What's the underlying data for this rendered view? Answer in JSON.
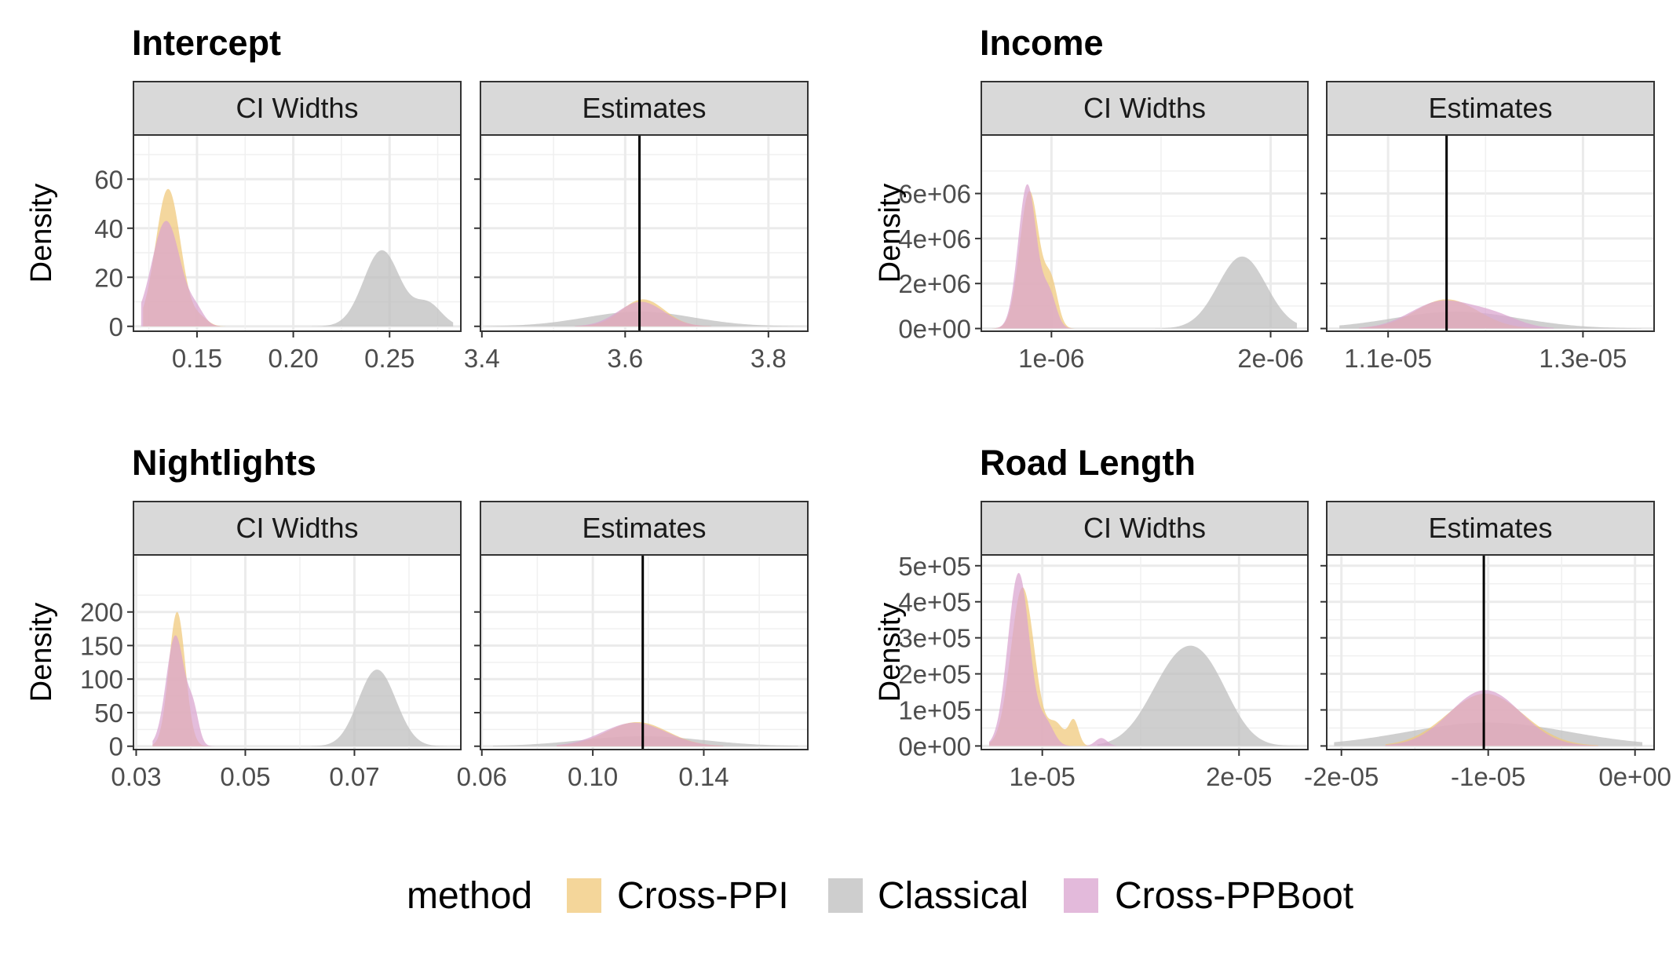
{
  "chart_data": {
    "type": "density",
    "methods": [
      {
        "name": "Cross-PPI",
        "color": "#f0c878"
      },
      {
        "name": "Classical",
        "color": "#bdbdbd"
      },
      {
        "name": "Cross-PPBoot",
        "color": "#d9a3cf"
      }
    ],
    "legend": {
      "title": "method",
      "position": "bottom",
      "labels": [
        "Cross-PPI",
        "Classical",
        "Cross-PPBoot"
      ]
    },
    "facet_labels": [
      "CI Widths",
      "Estimates"
    ],
    "ylabel": "Density",
    "panels": [
      {
        "title": "Intercept",
        "ci_widths": {
          "xlim": [
            0.117,
            0.287
          ],
          "ylim": [
            -2,
            78
          ],
          "xticks": [
            0.15,
            0.2,
            0.25
          ],
          "xtick_labels": [
            "0.15",
            "0.20",
            "0.25"
          ],
          "yticks": [
            0,
            20,
            40,
            60
          ],
          "ytick_labels": [
            "0",
            "20",
            "40",
            "60"
          ],
          "series": [
            {
              "method": "Classical",
              "peaks": [
                {
                  "mu": 0.246,
                  "sd": 0.0095,
                  "h": 31
                },
                {
                  "mu": 0.27,
                  "sd": 0.007,
                  "h": 9
                }
              ],
              "range": [
                0.205,
                0.283
              ]
            },
            {
              "method": "Cross-PPI",
              "peaks": [
                {
                  "mu": 0.135,
                  "sd": 0.0065,
                  "h": 56
                },
                {
                  "mu": 0.152,
                  "sd": 0.004,
                  "h": 3
                }
              ],
              "range": [
                0.122,
                0.166
              ]
            },
            {
              "method": "Cross-PPBoot",
              "peaks": [
                {
                  "mu": 0.134,
                  "sd": 0.0075,
                  "h": 43
                },
                {
                  "mu": 0.15,
                  "sd": 0.004,
                  "h": 5
                }
              ],
              "range": [
                0.121,
                0.162
              ]
            }
          ]
        },
        "estimates": {
          "xlim": [
            3.398,
            3.855
          ],
          "ylim": [
            -2,
            78
          ],
          "xticks": [
            3.4,
            3.6,
            3.8
          ],
          "xtick_labels": [
            "3.4",
            "3.6",
            "3.8"
          ],
          "vline": 3.62,
          "series": [
            {
              "method": "Classical",
              "peaks": [
                {
                  "mu": 3.62,
                  "sd": 0.075,
                  "h": 6
                }
              ],
              "range": [
                3.405,
                3.85
              ]
            },
            {
              "method": "Cross-PPI",
              "peaks": [
                {
                  "mu": 3.625,
                  "sd": 0.03,
                  "h": 11
                }
              ],
              "range": [
                3.53,
                3.72
              ]
            },
            {
              "method": "Cross-PPBoot",
              "peaks": [
                {
                  "mu": 3.622,
                  "sd": 0.032,
                  "h": 10
                }
              ],
              "range": [
                3.53,
                3.72
              ]
            }
          ]
        }
      },
      {
        "title": "Income",
        "ci_widths": {
          "xlim": [
            6.8e-07,
            2.17e-06
          ],
          "ylim": [
            -120000.0,
            8600000.0
          ],
          "xticks": [
            1e-06,
            2e-06
          ],
          "xtick_labels": [
            "1e-06",
            "2e-06"
          ],
          "yticks": [
            0,
            2000000.0,
            4000000.0,
            6000000.0
          ],
          "ytick_labels": [
            "0e+00",
            "2e+06",
            "4e+06",
            "6e+06"
          ],
          "series": [
            {
              "method": "Classical",
              "peaks": [
                {
                  "mu": 1.87e-06,
                  "sd": 1.1e-07,
                  "h": 3200000.0
                }
              ],
              "range": [
                1.47e-06,
                2.12e-06
              ]
            },
            {
              "method": "Cross-PPI",
              "peaks": [
                {
                  "mu": 9e-07,
                  "sd": 4.5e-08,
                  "h": 6100000.0
                },
                {
                  "mu": 1e-06,
                  "sd": 3e-08,
                  "h": 1900000.0
                }
              ],
              "range": [
                7.2e-07,
                1.15e-06
              ]
            },
            {
              "method": "Cross-PPBoot",
              "peaks": [
                {
                  "mu": 8.9e-07,
                  "sd": 4.2e-08,
                  "h": 6400000.0
                },
                {
                  "mu": 9.9e-07,
                  "sd": 3.2e-08,
                  "h": 1500000.0
                }
              ],
              "range": [
                7.2e-07,
                1.15e-06
              ]
            }
          ]
        },
        "estimates": {
          "xlim": [
            1.037e-05,
            1.373e-05
          ],
          "ylim": [
            -120000.0,
            8600000.0
          ],
          "xticks": [
            1.1e-05,
            1.3e-05
          ],
          "xtick_labels": [
            "1.1e-05",
            "1.3e-05"
          ],
          "vline": 1.16e-05,
          "series": [
            {
              "method": "Classical",
              "peaks": [
                {
                  "mu": 1.17e-05,
                  "sd": 6.5e-07,
                  "h": 750000.0
                }
              ],
              "range": [
                1.05e-05,
                1.36e-05
              ]
            },
            {
              "method": "Cross-PPI",
              "peaks": [
                {
                  "mu": 1.16e-05,
                  "sd": 3.2e-07,
                  "h": 1300000.0
                }
              ],
              "range": [
                1.07e-05,
                1.27e-05
              ]
            },
            {
              "method": "Cross-PPBoot",
              "peaks": [
                {
                  "mu": 1.155e-05,
                  "sd": 3.2e-07,
                  "h": 1200000.0
                },
                {
                  "mu": 1.21e-05,
                  "sd": 2.5e-07,
                  "h": 500000.0
                }
              ],
              "range": [
                1.07e-05,
                1.27e-05
              ]
            }
          ]
        }
      },
      {
        "title": "Nightlights",
        "ci_widths": {
          "xlim": [
            0.0295,
            0.0895
          ],
          "ylim": [
            -5,
            285
          ],
          "xticks": [
            0.03,
            0.05,
            0.07
          ],
          "xtick_labels": [
            "0.03",
            "0.05",
            "0.07"
          ],
          "yticks": [
            0,
            50,
            100,
            150,
            200
          ],
          "ytick_labels": [
            "0",
            "50",
            "100",
            "150",
            "200"
          ],
          "series": [
            {
              "method": "Classical",
              "peaks": [
                {
                  "mu": 0.0735,
                  "sd": 0.0032,
                  "h": 94
                },
                {
                  "mu": 0.0765,
                  "sd": 0.003,
                  "h": 30
                }
              ],
              "range": [
                0.062,
                0.087
              ]
            },
            {
              "method": "Cross-PPI",
              "peaks": [
                {
                  "mu": 0.0375,
                  "sd": 0.0015,
                  "h": 200
                }
              ],
              "range": [
                0.033,
                0.044
              ]
            },
            {
              "method": "Cross-PPBoot",
              "peaks": [
                {
                  "mu": 0.0372,
                  "sd": 0.0017,
                  "h": 165
                },
                {
                  "mu": 0.0405,
                  "sd": 0.001,
                  "h": 45
                }
              ],
              "range": [
                0.033,
                0.045
              ]
            }
          ]
        },
        "estimates": {
          "xlim": [
            0.0595,
            0.1775
          ],
          "ylim": [
            -5,
            285
          ],
          "xticks": [
            0.06,
            0.1,
            0.14
          ],
          "xtick_labels": [
            "0.06",
            "0.10",
            "0.14"
          ],
          "vline": 0.118,
          "series": [
            {
              "method": "Classical",
              "peaks": [
                {
                  "mu": 0.118,
                  "sd": 0.022,
                  "h": 15
                }
              ],
              "range": [
                0.064,
                0.174
              ]
            },
            {
              "method": "Cross-PPI",
              "peaks": [
                {
                  "mu": 0.116,
                  "sd": 0.011,
                  "h": 36
                }
              ],
              "range": [
                0.087,
                0.147
              ]
            },
            {
              "method": "Cross-PPBoot",
              "peaks": [
                {
                  "mu": 0.115,
                  "sd": 0.0115,
                  "h": 35
                }
              ],
              "range": [
                0.087,
                0.147
              ]
            }
          ]
        }
      },
      {
        "title": "Road Length",
        "ci_widths": {
          "xlim": [
            6.9e-06,
            2.35e-05
          ],
          "ylim": [
            -10000.0,
            530000.0
          ],
          "xticks": [
            1e-05,
            2e-05
          ],
          "xtick_labels": [
            "1e-05",
            "2e-05"
          ],
          "yticks": [
            0,
            100000.0,
            200000.0,
            300000.0,
            400000.0,
            500000.0
          ],
          "ytick_labels": [
            "0e+00",
            "1e+05",
            "2e+05",
            "3e+05",
            "4e+05",
            "5e+05"
          ],
          "series": [
            {
              "method": "Classical",
              "peaks": [
                {
                  "mu": 1.7e-05,
                  "sd": 1.5e-06,
                  "h": 230000.0
                },
                {
                  "mu": 1.87e-05,
                  "sd": 1.2e-06,
                  "h": 100000.0
                }
              ],
              "range": [
                1.28e-05,
                2.3e-05
              ]
            },
            {
              "method": "Cross-PPI",
              "peaks": [
                {
                  "mu": 9e-06,
                  "sd": 6e-07,
                  "h": 440000.0
                },
                {
                  "mu": 1.16e-05,
                  "sd": 2.5e-07,
                  "h": 70000.0
                },
                {
                  "mu": 1.07e-05,
                  "sd": 4e-07,
                  "h": 60000.0
                }
              ],
              "range": [
                7.3e-06,
                1.28e-05
              ]
            },
            {
              "method": "Cross-PPBoot",
              "peaks": [
                {
                  "mu": 8.8e-06,
                  "sd": 5.5e-07,
                  "h": 480000.0
                },
                {
                  "mu": 1.02e-05,
                  "sd": 4e-07,
                  "h": 60000.0
                },
                {
                  "mu": 1.3e-05,
                  "sd": 3e-07,
                  "h": 22000.0
                }
              ],
              "range": [
                7.3e-06,
                1.4e-05
              ]
            }
          ]
        },
        "estimates": {
          "xlim": [
            -2.1e-05,
            1.3e-06
          ],
          "ylim": [
            -10000.0,
            530000.0
          ],
          "xticks": [
            -2e-05,
            -1e-05,
            0
          ],
          "xtick_labels": [
            "-2e-05",
            "-1e-05",
            "0e+00"
          ],
          "vline": -1.03e-05,
          "series": [
            {
              "method": "Classical",
              "peaks": [
                {
                  "mu": -1e-05,
                  "sd": 5.5e-06,
                  "h": 65000.0
                }
              ],
              "range": [
                -2.05e-05,
                5e-07
              ]
            },
            {
              "method": "Cross-PPI",
              "peaks": [
                {
                  "mu": -1.02e-05,
                  "sd": 2.6e-06,
                  "h": 145000.0
                }
              ],
              "range": [
                -1.7e-05,
                -2.5e-06
              ]
            },
            {
              "method": "Cross-PPBoot",
              "peaks": [
                {
                  "mu": -1.02e-05,
                  "sd": 2.4e-06,
                  "h": 155000.0
                }
              ],
              "range": [
                -1.7e-05,
                -2.5e-06
              ]
            }
          ]
        }
      }
    ]
  }
}
